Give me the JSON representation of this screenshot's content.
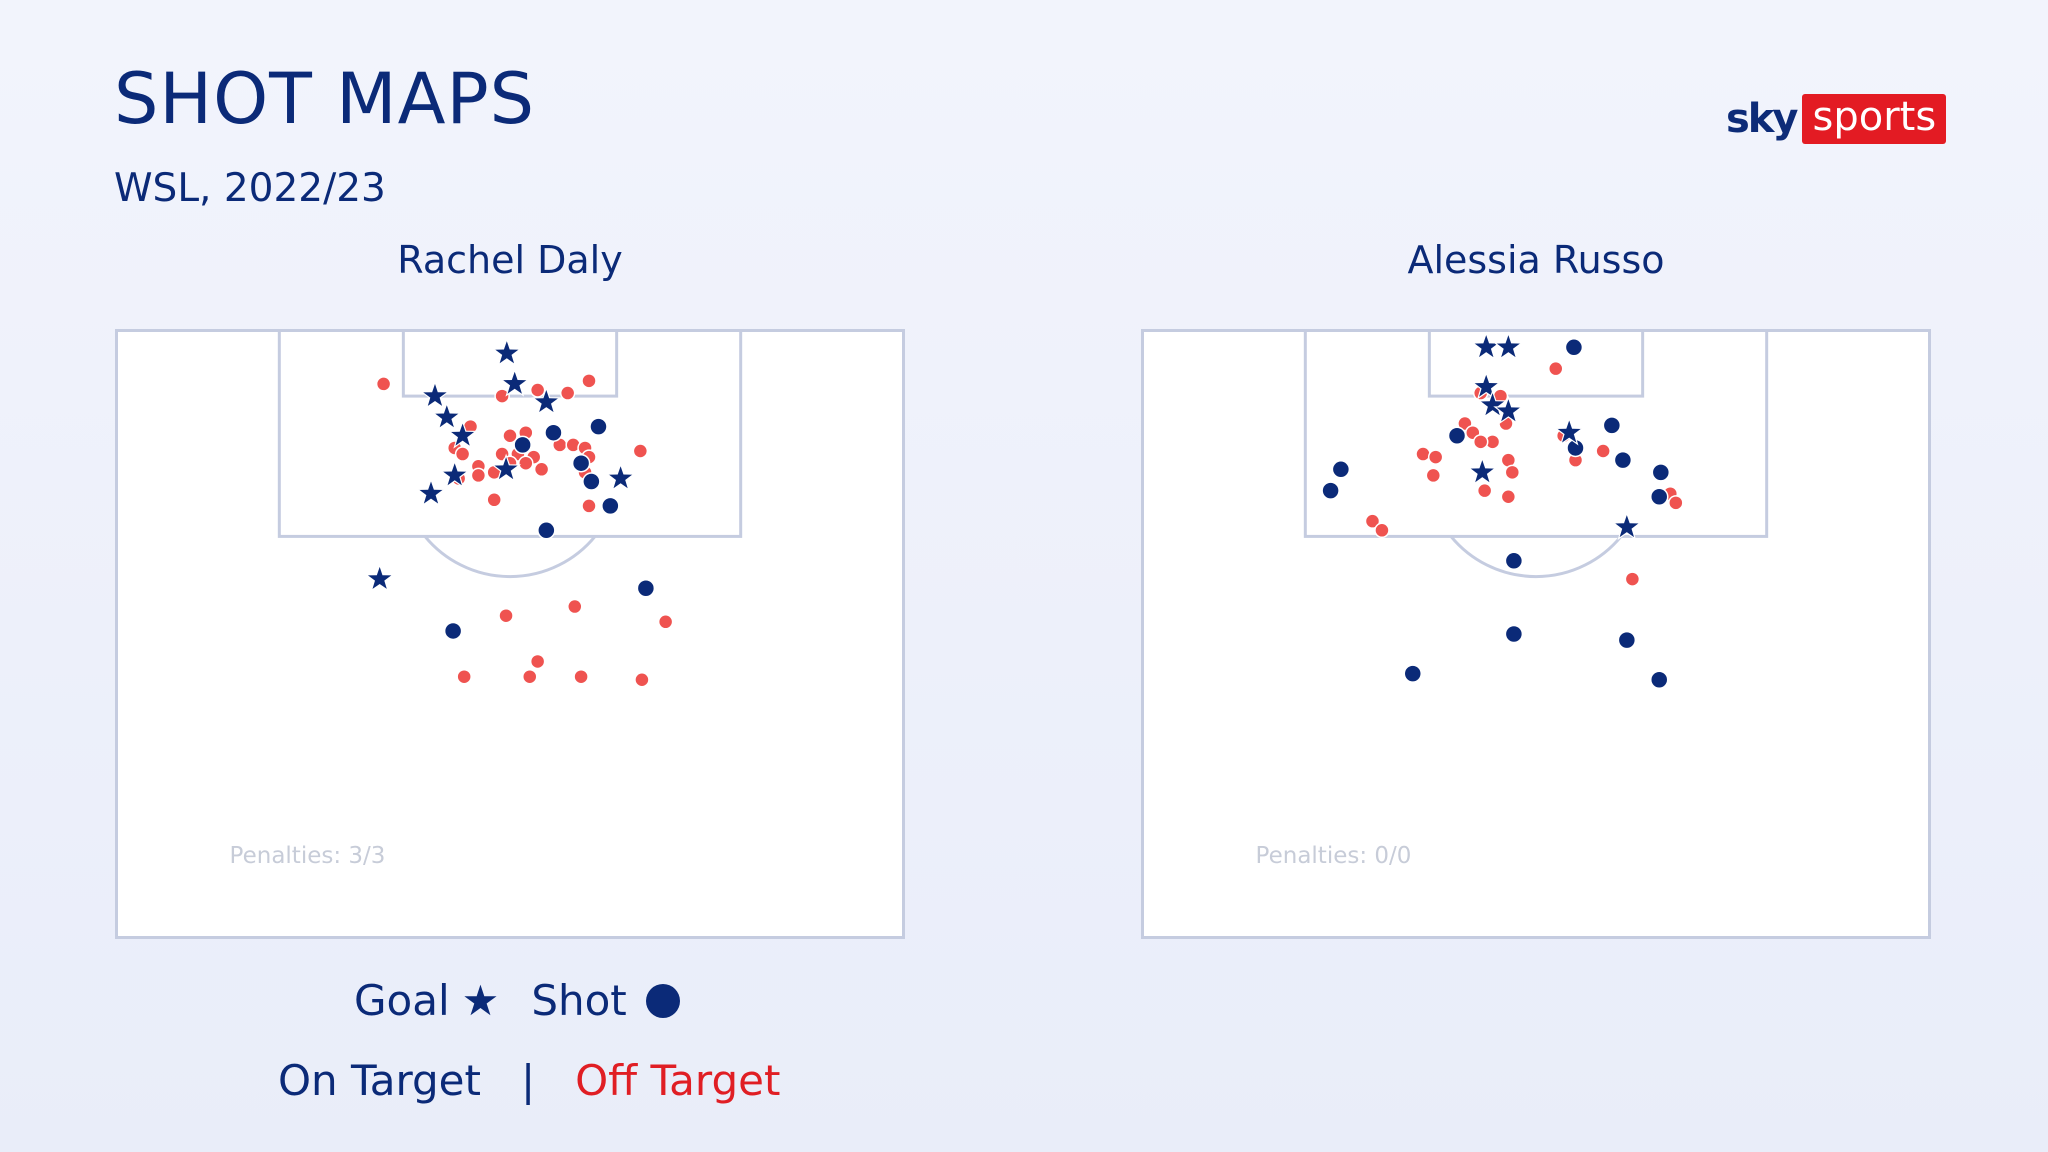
{
  "header": {
    "title": "SHOT MAPS",
    "subtitle": "WSL, 2022/23",
    "logo_sky": "sky",
    "logo_sports": "sports"
  },
  "colors": {
    "on_target": "#0b2a78",
    "off_target": "#ef5350",
    "pitch_line": "#c5cce0",
    "pitch_fill": "#ffffff"
  },
  "legend": {
    "goal_label": "Goal",
    "goal_symbol": "★",
    "shot_label": "Shot",
    "on_target_label": "On Target",
    "separator": "|",
    "off_target_label": "Off Target"
  },
  "chart_data": [
    {
      "type": "scatter",
      "player": "Rachel Daly",
      "penalties_label": "Penalties: 3/3",
      "goals": [
        [
          0.496,
          0.04
        ],
        [
          0.405,
          0.11
        ],
        [
          0.506,
          0.09
        ],
        [
          0.546,
          0.12
        ],
        [
          0.42,
          0.145
        ],
        [
          0.44,
          0.175
        ],
        [
          0.43,
          0.24
        ],
        [
          0.495,
          0.23
        ],
        [
          0.4,
          0.27
        ],
        [
          0.64,
          0.245
        ],
        [
          0.335,
          0.41
        ]
      ],
      "shots_on_target": [
        [
          0.555,
          0.17
        ],
        [
          0.612,
          0.16
        ],
        [
          0.516,
          0.19
        ],
        [
          0.59,
          0.22
        ],
        [
          0.603,
          0.25
        ],
        [
          0.627,
          0.29
        ],
        [
          0.546,
          0.33
        ],
        [
          0.672,
          0.425
        ],
        [
          0.428,
          0.495
        ]
      ],
      "shots_off_target": [
        [
          0.34,
          0.09
        ],
        [
          0.6,
          0.085
        ],
        [
          0.535,
          0.1
        ],
        [
          0.573,
          0.105
        ],
        [
          0.49,
          0.11
        ],
        [
          0.45,
          0.16
        ],
        [
          0.5,
          0.175
        ],
        [
          0.52,
          0.17
        ],
        [
          0.563,
          0.19
        ],
        [
          0.58,
          0.19
        ],
        [
          0.595,
          0.195
        ],
        [
          0.665,
          0.2
        ],
        [
          0.43,
          0.195
        ],
        [
          0.44,
          0.205
        ],
        [
          0.49,
          0.205
        ],
        [
          0.51,
          0.205
        ],
        [
          0.46,
          0.225
        ],
        [
          0.53,
          0.21
        ],
        [
          0.6,
          0.21
        ],
        [
          0.54,
          0.23
        ],
        [
          0.52,
          0.22
        ],
        [
          0.46,
          0.24
        ],
        [
          0.48,
          0.235
        ],
        [
          0.435,
          0.245
        ],
        [
          0.5,
          0.22
        ],
        [
          0.595,
          0.235
        ],
        [
          0.6,
          0.29
        ],
        [
          0.48,
          0.28
        ],
        [
          0.495,
          0.47
        ],
        [
          0.582,
          0.455
        ],
        [
          0.697,
          0.48
        ],
        [
          0.442,
          0.57
        ],
        [
          0.535,
          0.545
        ],
        [
          0.525,
          0.57
        ],
        [
          0.59,
          0.57
        ],
        [
          0.667,
          0.575
        ]
      ]
    },
    {
      "type": "scatter",
      "player": "Alessia Russo",
      "penalties_label": "Penalties: 0/0",
      "goals": [
        [
          0.437,
          0.03
        ],
        [
          0.465,
          0.03
        ],
        [
          0.437,
          0.095
        ],
        [
          0.445,
          0.125
        ],
        [
          0.465,
          0.135
        ],
        [
          0.542,
          0.17
        ],
        [
          0.432,
          0.235
        ],
        [
          0.615,
          0.325
        ]
      ],
      "shots_on_target": [
        [
          0.548,
          0.03
        ],
        [
          0.4,
          0.175
        ],
        [
          0.55,
          0.195
        ],
        [
          0.596,
          0.158
        ],
        [
          0.61,
          0.215
        ],
        [
          0.658,
          0.235
        ],
        [
          0.253,
          0.23
        ],
        [
          0.24,
          0.265
        ],
        [
          0.656,
          0.275
        ],
        [
          0.472,
          0.38
        ],
        [
          0.472,
          0.5
        ],
        [
          0.344,
          0.565
        ],
        [
          0.615,
          0.51
        ],
        [
          0.656,
          0.575
        ]
      ],
      "shots_off_target": [
        [
          0.525,
          0.065
        ],
        [
          0.43,
          0.105
        ],
        [
          0.455,
          0.11
        ],
        [
          0.41,
          0.155
        ],
        [
          0.42,
          0.17
        ],
        [
          0.462,
          0.155
        ],
        [
          0.445,
          0.185
        ],
        [
          0.535,
          0.175
        ],
        [
          0.585,
          0.2
        ],
        [
          0.43,
          0.185
        ],
        [
          0.357,
          0.205
        ],
        [
          0.373,
          0.21
        ],
        [
          0.465,
          0.215
        ],
        [
          0.47,
          0.235
        ],
        [
          0.55,
          0.215
        ],
        [
          0.37,
          0.24
        ],
        [
          0.435,
          0.265
        ],
        [
          0.465,
          0.275
        ],
        [
          0.67,
          0.27
        ],
        [
          0.677,
          0.285
        ],
        [
          0.293,
          0.315
        ],
        [
          0.305,
          0.33
        ],
        [
          0.622,
          0.41
        ]
      ]
    }
  ]
}
